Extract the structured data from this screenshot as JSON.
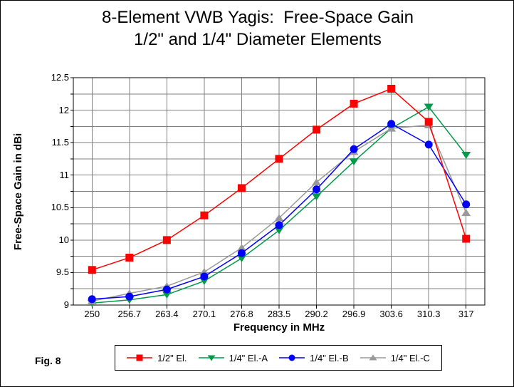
{
  "page": {
    "fig_label": "Fig. 8"
  },
  "chart_data": {
    "type": "line",
    "title_line1": "8-Element VWB Yagis:  Free-Space Gain",
    "title_line2": "1/2\" and 1/4\" Diameter Elements",
    "xlabel": "Frequency in MHz",
    "ylabel": "Free-Space Gain in dBi",
    "x_tick_labels": [
      "250",
      "256.7",
      "263.4",
      "270.1",
      "276.8",
      "283.5",
      "290.2",
      "296.9",
      "303.6",
      "310.3",
      "317"
    ],
    "x_values": [
      250,
      256.7,
      263.4,
      270.1,
      276.8,
      283.5,
      290.2,
      296.9,
      303.6,
      310.3,
      317
    ],
    "y_tick_labels": [
      "12.5",
      "12",
      "11.5",
      "11",
      "10.5",
      "10",
      "9.5",
      "9"
    ],
    "y_tick_values": [
      12.5,
      12,
      11.5,
      11,
      10.5,
      10,
      9.5,
      9
    ],
    "ylim": [
      9,
      12.5
    ],
    "y_grid_step": 0.25,
    "grid": true,
    "legend_position": "bottom",
    "series": [
      {
        "name": "1/2\" El.",
        "marker": "square",
        "color": "#FF0000",
        "values": [
          9.54,
          9.73,
          10.0,
          10.38,
          10.8,
          11.25,
          11.7,
          12.1,
          12.33,
          11.82,
          10.02
        ]
      },
      {
        "name": "1/4\" El.-A",
        "marker": "triangle-down",
        "color": "#009A49",
        "values": [
          9.03,
          9.08,
          9.16,
          9.37,
          9.72,
          10.15,
          10.67,
          11.21,
          11.72,
          12.05,
          11.31
        ]
      },
      {
        "name": "1/4\" El.-B",
        "marker": "circle",
        "color": "#0000FF",
        "values": [
          9.09,
          9.13,
          9.24,
          9.44,
          9.8,
          10.23,
          10.78,
          11.4,
          11.79,
          11.47,
          10.55
        ]
      },
      {
        "name": "1/4\" El.-C",
        "marker": "triangle-up",
        "color": "#999999",
        "values": [
          9.06,
          9.18,
          9.29,
          9.51,
          9.88,
          10.34,
          10.89,
          11.36,
          11.72,
          11.77,
          10.42
        ]
      }
    ],
    "colors": {
      "grid": "#808080",
      "axis_frame": "#000000",
      "background": "#FFFFFF"
    }
  }
}
